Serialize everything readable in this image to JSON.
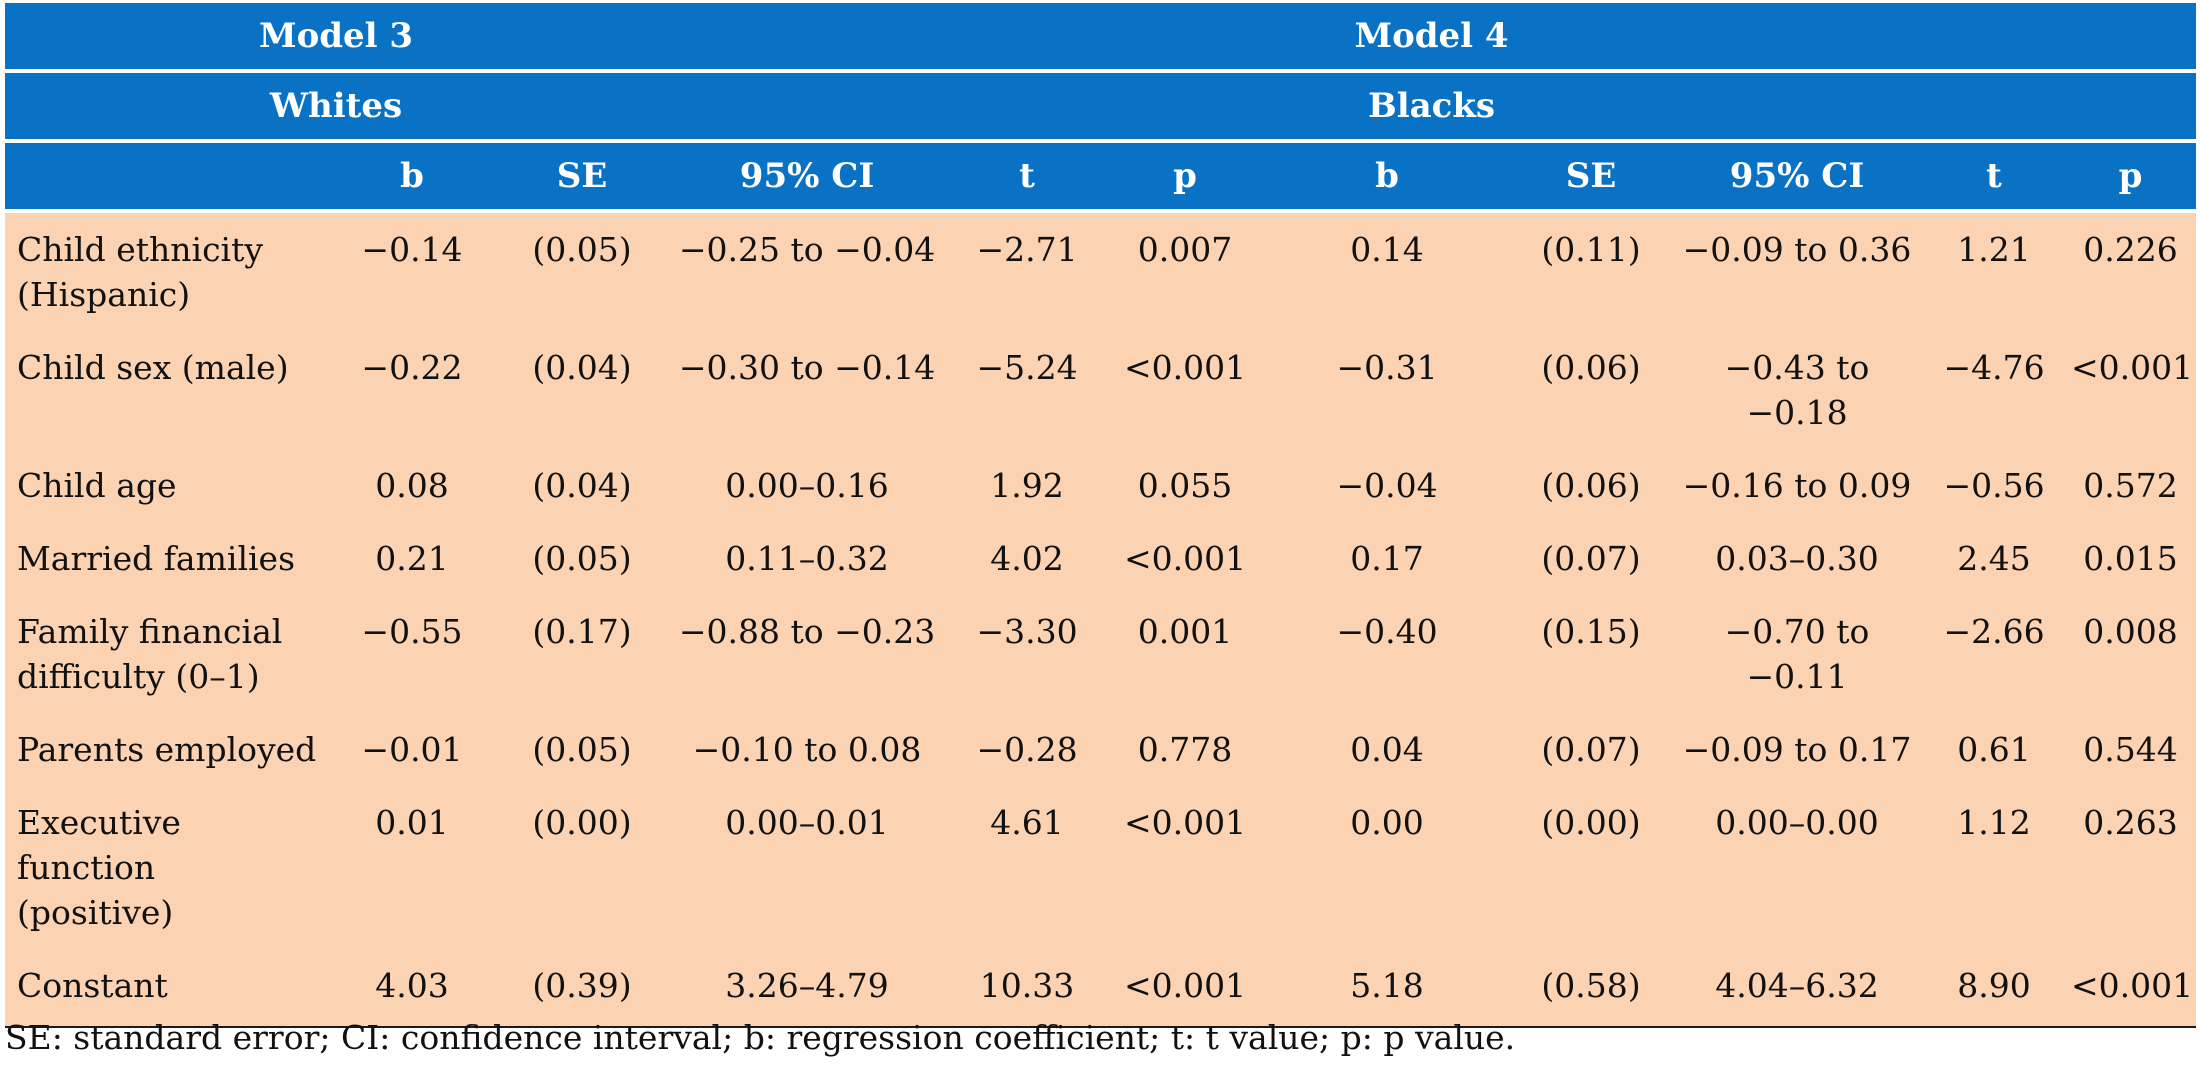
{
  "groups": [
    {
      "model": "Model 3",
      "population": "Whites"
    },
    {
      "model": "Model 4",
      "population": "Blacks"
    }
  ],
  "columns": [
    "b",
    "SE",
    "95% CI",
    "t",
    "p",
    "b",
    "SE",
    "95% CI",
    "t",
    "p"
  ],
  "rows": [
    {
      "label": "Child ethnicity (Hispanic)",
      "cells": [
        "−0.14",
        "(0.05)",
        "−0.25 to −0.04",
        "−2.71",
        "0.007",
        "0.14",
        "(0.11)",
        "−0.09 to 0.36",
        "1.21",
        "0.226"
      ]
    },
    {
      "label": "Child sex (male)",
      "cells": [
        "−0.22",
        "(0.04)",
        "−0.30 to −0.14",
        "−5.24",
        "<0.001",
        "−0.31",
        "(0.06)",
        "−0.43 to −0.18",
        "−4.76",
        "<0.001"
      ]
    },
    {
      "label": "Child age",
      "cells": [
        "0.08",
        "(0.04)",
        "0.00–0.16",
        "1.92",
        "0.055",
        "−0.04",
        "(0.06)",
        "−0.16 to 0.09",
        "−0.56",
        "0.572"
      ]
    },
    {
      "label": "Married families",
      "cells": [
        "0.21",
        "(0.05)",
        "0.11–0.32",
        "4.02",
        "<0.001",
        "0.17",
        "(0.07)",
        "0.03–0.30",
        "2.45",
        "0.015"
      ]
    },
    {
      "label": "Family financial difficulty (0–1)",
      "cells": [
        "−0.55",
        "(0.17)",
        "−0.88 to −0.23",
        "−3.30",
        "0.001",
        "−0.40",
        "(0.15)",
        "−0.70 to −0.11",
        "−2.66",
        "0.008"
      ]
    },
    {
      "label": "Parents employed",
      "cells": [
        "−0.01",
        "(0.05)",
        "−0.10 to 0.08",
        "−0.28",
        "0.778",
        "0.04",
        "(0.07)",
        "−0.09 to 0.17",
        "0.61",
        "0.544"
      ]
    },
    {
      "label": "Executive function (positive)",
      "cells": [
        "0.01",
        "(0.00)",
        "0.00–0.01",
        "4.61",
        "<0.001",
        "0.00",
        "(0.00)",
        "0.00–0.00",
        "1.12",
        "0.263"
      ]
    },
    {
      "label": "Constant",
      "cells": [
        "4.03",
        "(0.39)",
        "3.26–4.79",
        "10.33",
        "<0.001",
        "5.18",
        "(0.58)",
        "4.04–6.32",
        "8.90",
        "<0.001"
      ]
    }
  ],
  "footnote": "SE: standard error; CI: confidence interval; b: regression coefficient; t: t value; p: p value.",
  "colors": {
    "header_bg": "#0a72c4",
    "body_bg": "#fbd3b3"
  }
}
